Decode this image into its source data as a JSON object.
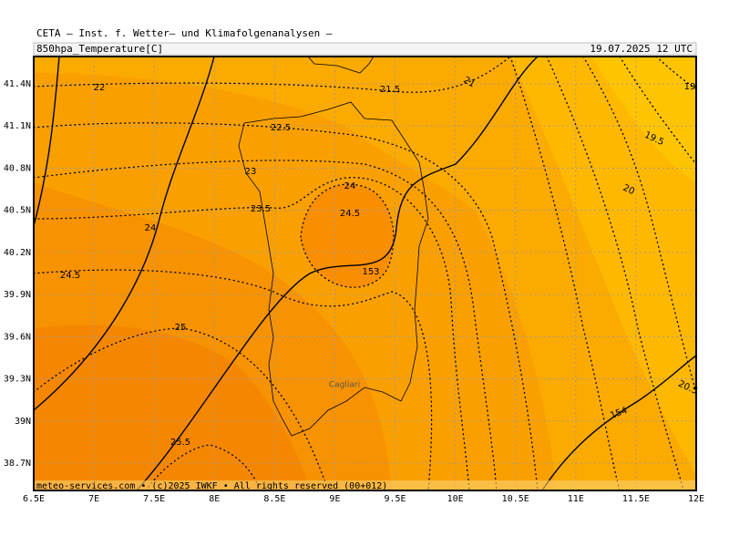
{
  "header": {
    "title": "CETA — Inst. f. Wetter— und Klimafolgenanalysen —",
    "variable": "850hpa_Temperature[C]",
    "valid_time": "19.07.2025 12 UTC"
  },
  "axes": {
    "x_ticks": [
      {
        "value": 6.5,
        "label": "6.5E"
      },
      {
        "value": 7,
        "label": "7E"
      },
      {
        "value": 7.5,
        "label": "7.5E"
      },
      {
        "value": 8,
        "label": "8E"
      },
      {
        "value": 8.5,
        "label": "8.5E"
      },
      {
        "value": 9,
        "label": "9E"
      },
      {
        "value": 9.5,
        "label": "9.5E"
      },
      {
        "value": 10,
        "label": "10E"
      },
      {
        "value": 10.5,
        "label": "10.5E"
      },
      {
        "value": 11,
        "label": "11E"
      },
      {
        "value": 11.5,
        "label": "11.5E"
      },
      {
        "value": 12,
        "label": "12E"
      }
    ],
    "y_ticks": [
      {
        "value": 41.4,
        "label": "41.4N"
      },
      {
        "value": 41.1,
        "label": "41.1N"
      },
      {
        "value": 40.8,
        "label": "40.8N"
      },
      {
        "value": 40.5,
        "label": "40.5N"
      },
      {
        "value": 40.2,
        "label": "40.2N"
      },
      {
        "value": 39.9,
        "label": "39.9N"
      },
      {
        "value": 39.6,
        "label": "39.6N"
      },
      {
        "value": 39.3,
        "label": "39.3N"
      },
      {
        "value": 39,
        "label": "39N"
      },
      {
        "value": 38.7,
        "label": "38.7N"
      }
    ]
  },
  "contour_labels": [
    "22",
    "21.5",
    "21",
    "19",
    "22.5",
    "19.5",
    "23",
    "24",
    "20",
    "23.5",
    "24.5",
    "24",
    "24.5",
    "153",
    "25",
    "20.5",
    "154",
    "25.5"
  ],
  "places": [
    "Cagliari"
  ],
  "footer": "meteo-services.com • (c)2025 IWKF • All rights reserved (00+012)"
}
